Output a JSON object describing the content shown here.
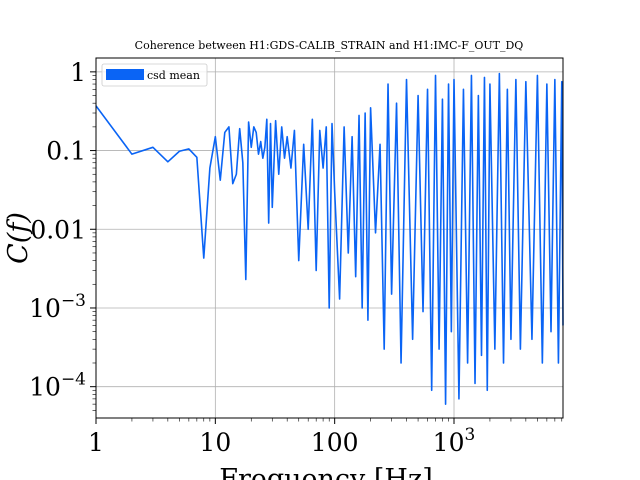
{
  "chart_data": {
    "type": "line",
    "title": "Coherence between H1:GDS-CALIB_STRAIN and H1:IMC-F_OUT_DQ",
    "xlabel": "Frequency [Hz]",
    "ylabel": "C(f)",
    "x_scale": "log",
    "y_scale": "log",
    "xlim": [
      1,
      8192
    ],
    "ylim": [
      4e-05,
      1.5
    ],
    "grid": true,
    "legend_position": "top-left",
    "x_ticks": [
      {
        "value": 1,
        "label": "1"
      },
      {
        "value": 10,
        "label": "10"
      },
      {
        "value": 100,
        "label": "100"
      },
      {
        "value": 1000,
        "label_base": "10",
        "label_exp": "3"
      }
    ],
    "y_ticks": [
      {
        "value": 1,
        "label": "1"
      },
      {
        "value": 0.1,
        "label": "0.1"
      },
      {
        "value": 0.01,
        "label": "0.01"
      },
      {
        "value": 0.001,
        "label_base": "10",
        "label_exp": "−3"
      },
      {
        "value": 0.0001,
        "label_base": "10",
        "label_exp": "−4"
      }
    ],
    "series": [
      {
        "name": "csd mean",
        "color": "#0a64f5",
        "x": [
          1,
          2,
          3,
          4,
          5,
          6,
          7,
          8,
          9,
          10,
          11,
          12,
          13,
          14,
          15,
          16,
          17,
          18,
          19,
          20,
          21,
          22,
          23,
          24,
          25,
          26,
          27,
          28,
          29,
          30,
          32,
          34,
          36,
          38,
          40,
          43,
          46,
          50,
          55,
          60,
          65,
          70,
          75,
          80,
          85,
          90,
          95,
          100,
          110,
          120,
          130,
          140,
          150,
          160,
          170,
          180,
          190,
          200,
          220,
          240,
          260,
          280,
          300,
          330,
          360,
          400,
          450,
          500,
          550,
          600,
          650,
          700,
          750,
          800,
          850,
          900,
          950,
          1000,
          1100,
          1200,
          1300,
          1400,
          1500,
          1600,
          1700,
          1800,
          1900,
          2000,
          2200,
          2400,
          2600,
          2800,
          3000,
          3300,
          3600,
          4000,
          4500,
          5000,
          5500,
          6000,
          6500,
          7000,
          7500,
          8000,
          8192
        ],
        "y": [
          0.37,
          0.09,
          0.11,
          0.072,
          0.098,
          0.105,
          0.082,
          0.0043,
          0.06,
          0.15,
          0.042,
          0.17,
          0.2,
          0.038,
          0.05,
          0.19,
          0.07,
          0.0023,
          0.23,
          0.11,
          0.2,
          0.17,
          0.09,
          0.13,
          0.08,
          0.11,
          0.25,
          0.012,
          0.22,
          0.019,
          0.24,
          0.05,
          0.2,
          0.08,
          0.15,
          0.06,
          0.18,
          0.004,
          0.12,
          0.01,
          0.25,
          0.003,
          0.18,
          0.06,
          0.2,
          0.001,
          0.22,
          0.03,
          0.0013,
          0.2,
          0.005,
          0.15,
          0.0025,
          0.28,
          0.001,
          0.3,
          0.0007,
          0.35,
          0.009,
          0.12,
          0.0003,
          0.7,
          0.0015,
          0.4,
          0.0002,
          0.8,
          0.0004,
          0.5,
          0.0009,
          0.6,
          9e-05,
          0.9,
          0.0003,
          0.45,
          6e-05,
          0.7,
          0.0005,
          0.8,
          7e-05,
          0.6,
          0.0002,
          0.9,
          0.00011,
          0.5,
          0.00025,
          0.85,
          9e-05,
          0.7,
          0.0003,
          0.95,
          0.0002,
          0.6,
          0.0004,
          0.8,
          0.0003,
          0.75,
          0.0004,
          0.9,
          0.0002,
          0.7,
          0.0005,
          0.8,
          0.0002,
          0.75,
          0.0006
        ]
      }
    ]
  }
}
